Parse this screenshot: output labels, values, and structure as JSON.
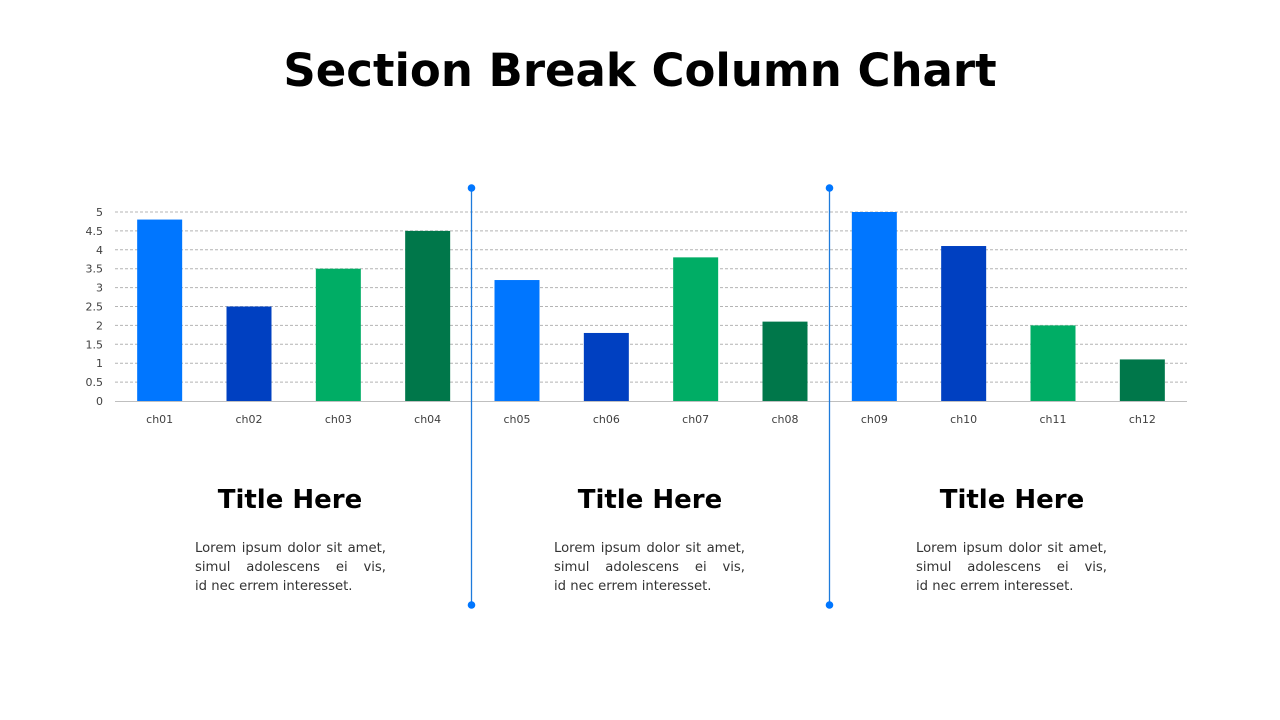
{
  "slide": {
    "title": "Section Break Column Chart"
  },
  "colors": {
    "blue": "#0076FF",
    "dark_blue": "#0040C1",
    "green": "#00AD65",
    "dark_green": "#00774A",
    "divider": "#1E7BDB",
    "grid": "#B4B4B4",
    "axis": "#BFBFBF"
  },
  "chart_data": {
    "type": "bar",
    "title": "",
    "xlabel": "",
    "ylabel": "",
    "categories": [
      "ch01",
      "ch02",
      "ch03",
      "ch04",
      "ch05",
      "ch06",
      "ch07",
      "ch08",
      "ch09",
      "ch10",
      "ch11",
      "ch12"
    ],
    "values": [
      4.8,
      2.5,
      3.5,
      4.5,
      3.2,
      1.8,
      3.8,
      2.1,
      5.0,
      4.1,
      2.0,
      1.1
    ],
    "bar_colors": [
      "#0076FF",
      "#0040C1",
      "#00AD65",
      "#00774A",
      "#0076FF",
      "#0040C1",
      "#00AD65",
      "#00774A",
      "#0076FF",
      "#0040C1",
      "#00AD65",
      "#00774A"
    ],
    "ylim": [
      0,
      5
    ],
    "yticks": [
      "0",
      "0.5",
      "1",
      "1.5",
      "2",
      "2.5",
      "3",
      "3.5",
      "4",
      "4.5",
      "5"
    ],
    "grid": true,
    "grid_style": "dashed",
    "legend": "none",
    "section_breaks_after": [
      "ch04",
      "ch08"
    ]
  },
  "sections": [
    {
      "title": "Title Here",
      "body_lines": [
        "Lorem ipsum dolor sit amet,",
        "simul adolescens ei vis,",
        "id nec errem interesset."
      ]
    },
    {
      "title": "Title Here",
      "body_lines": [
        "Lorem ipsum dolor sit amet,",
        "simul adolescens ei vis,",
        "id nec errem interesset."
      ]
    },
    {
      "title": "Title Here",
      "body_lines": [
        "Lorem ipsum dolor sit amet,",
        "simul adolescens ei vis,",
        "id nec errem interesset."
      ]
    }
  ]
}
